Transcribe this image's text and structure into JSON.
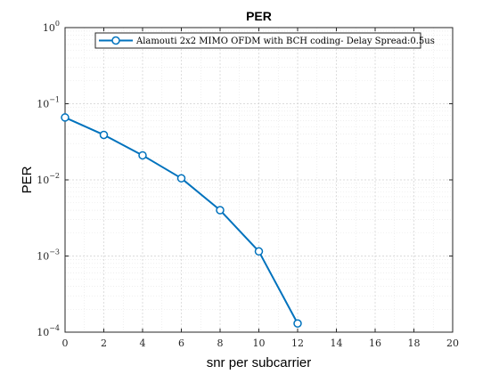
{
  "chart_data": {
    "type": "line",
    "title": "PER",
    "xlabel": "snr per subcarrier",
    "ylabel": "PER",
    "xlim": [
      0,
      20
    ],
    "ylim": [
      0.0001,
      1
    ],
    "yscale": "log",
    "grid": true,
    "minor_grid": true,
    "legend_position": "top",
    "x_ticks": [
      0,
      2,
      4,
      6,
      8,
      10,
      12,
      14,
      16,
      18,
      20
    ],
    "y_ticks": [
      {
        "value": 0.0001,
        "base": "10",
        "exp": "−4"
      },
      {
        "value": 0.001,
        "base": "10",
        "exp": "−3"
      },
      {
        "value": 0.01,
        "base": "10",
        "exp": "−2"
      },
      {
        "value": 0.1,
        "base": "10",
        "exp": "−1"
      },
      {
        "value": 1,
        "base": "10",
        "exp": "0"
      }
    ],
    "series": [
      {
        "name": "Alamouti 2x2 MIMO OFDM with BCH coding- Delay Spread:0.5us",
        "color": "#0072BD",
        "marker": "circle",
        "x": [
          0,
          2,
          4,
          6,
          8,
          10,
          12
        ],
        "y": [
          0.066,
          0.039,
          0.021,
          0.0105,
          0.004,
          0.00115,
          0.00013
        ]
      }
    ]
  }
}
